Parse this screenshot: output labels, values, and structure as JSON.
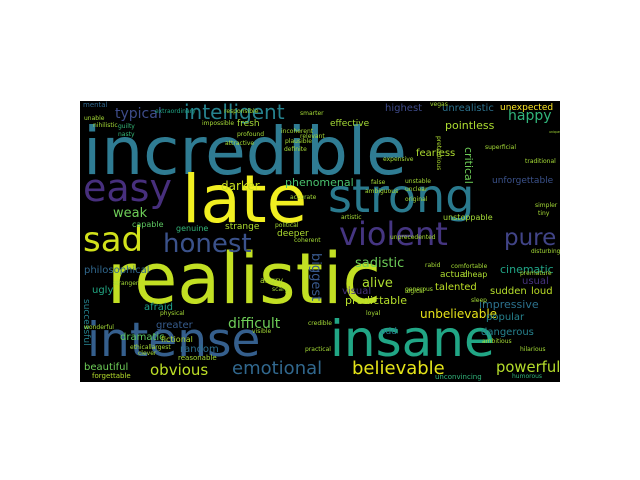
{
  "cloud": {
    "background": "#000000",
    "palette": [
      "#440154",
      "#482878",
      "#3e4989",
      "#31688e",
      "#26828e",
      "#1f9e89",
      "#35b779",
      "#6ece58",
      "#b5de2b",
      "#fde725"
    ],
    "words": [
      {
        "text": "incredible",
        "color": "#2f7c93"
      },
      {
        "text": "realistic",
        "color": "#c2df23"
      },
      {
        "text": "late",
        "color": "#f1ef21"
      },
      {
        "text": "strong",
        "color": "#2a7a8e"
      },
      {
        "text": "intense",
        "color": "#355f8d"
      },
      {
        "text": "insane",
        "color": "#21a685"
      },
      {
        "text": "easy",
        "color": "#472f7d"
      },
      {
        "text": "sad",
        "color": "#d2e21b"
      },
      {
        "text": "violent",
        "color": "#453581"
      },
      {
        "text": "honest",
        "color": "#3b528b"
      },
      {
        "text": "pure",
        "color": "#414487"
      },
      {
        "text": "intelligent",
        "color": "#26828e"
      },
      {
        "text": "typical",
        "color": "#3e4c8a"
      },
      {
        "text": "believable",
        "color": "#e5e419"
      },
      {
        "text": "emotional",
        "color": "#31688e"
      },
      {
        "text": "powerful",
        "color": "#b5de2b"
      },
      {
        "text": "happy",
        "color": "#31b57b"
      },
      {
        "text": "obvious",
        "color": "#bddf26"
      },
      {
        "text": "difficult",
        "color": "#6ece58"
      },
      {
        "text": "beautiful",
        "color": "#6ece58"
      },
      {
        "text": "darker",
        "color": "#cae11f"
      },
      {
        "text": "phenomenal",
        "color": "#4ac16d"
      },
      {
        "text": "biggest",
        "color": "#38588c"
      },
      {
        "text": "sadistic",
        "color": "#6ece58"
      },
      {
        "text": "cinematic",
        "color": "#20a486"
      },
      {
        "text": "alive",
        "color": "#addc30"
      },
      {
        "text": "predictable",
        "color": "#b5de2b"
      },
      {
        "text": "unbelievable",
        "color": "#e7e419"
      },
      {
        "text": "impressive",
        "color": "#2c728e"
      },
      {
        "text": "dramatic",
        "color": "#5ec962"
      },
      {
        "text": "weak",
        "color": "#6ece58"
      },
      {
        "text": "philosophical",
        "color": "#31688e"
      },
      {
        "text": "unrealistic",
        "color": "#2c728e"
      },
      {
        "text": "unexpected",
        "color": "#fde725"
      },
      {
        "text": "pointless",
        "color": "#addc30"
      },
      {
        "text": "critical",
        "color": "#6ece58"
      },
      {
        "text": "fearless",
        "color": "#addc30"
      },
      {
        "text": "unforgettable",
        "color": "#3b528b"
      },
      {
        "text": "highest",
        "color": "#3e4a89"
      },
      {
        "text": "random",
        "color": "#2d708e"
      },
      {
        "text": "greater",
        "color": "#365c8d"
      },
      {
        "text": "afraid",
        "color": "#1f9e89"
      },
      {
        "text": "visual",
        "color": "#46327e"
      },
      {
        "text": "usual",
        "color": "#46327e"
      },
      {
        "text": "popular",
        "color": "#26828e"
      },
      {
        "text": "dangerous",
        "color": "#26828e"
      },
      {
        "text": "talented",
        "color": "#bddf26"
      },
      {
        "text": "sudden",
        "color": "#b5de2b"
      },
      {
        "text": "loud",
        "color": "#bddf26"
      },
      {
        "text": "successful",
        "color": "#26828e"
      },
      {
        "text": "ugly",
        "color": "#22a884"
      },
      {
        "text": "fictional",
        "color": "#addc30"
      },
      {
        "text": "unconvincing",
        "color": "#31b57b"
      },
      {
        "text": "humorous",
        "color": "#31b57b"
      },
      {
        "text": "forgettable",
        "color": "#b5de2b"
      },
      {
        "text": "strange",
        "color": "#addc30"
      },
      {
        "text": "deeper",
        "color": "#addc30"
      },
      {
        "text": "angry",
        "color": "#addc30"
      },
      {
        "text": "capable",
        "color": "#5ec962"
      },
      {
        "text": "genuine",
        "color": "#35b779"
      },
      {
        "text": "reasonable",
        "color": "#a5db36"
      },
      {
        "text": "unstoppable",
        "color": "#a5db36"
      },
      {
        "text": "actual",
        "color": "#addc30"
      },
      {
        "text": "cheap",
        "color": "#addc30"
      },
      {
        "text": "odd",
        "color": "#26828e"
      },
      {
        "text": "fresh",
        "color": "#a5db36"
      },
      {
        "text": "effective",
        "color": "#a5db36"
      },
      {
        "text": "mental",
        "color": "#31688e"
      },
      {
        "text": "guilty",
        "color": "#35b779"
      },
      {
        "text": "nasty",
        "color": "#35b779"
      },
      {
        "text": "unable",
        "color": "#a5db36"
      },
      {
        "text": "nihilistic",
        "color": "#a5db36"
      },
      {
        "text": "extraordinary",
        "color": "#20a486"
      },
      {
        "text": "responsible",
        "color": "#a5db36"
      },
      {
        "text": "profound",
        "color": "#a5db36"
      },
      {
        "text": "incoherent",
        "color": "#a5db36"
      },
      {
        "text": "relevant",
        "color": "#a5db36"
      },
      {
        "text": "pretentious",
        "color": "#addc30"
      },
      {
        "text": "expensive",
        "color": "#a5db36"
      },
      {
        "text": "accurate",
        "color": "#a5db36"
      },
      {
        "text": "ambiguous",
        "color": "#a5db36"
      },
      {
        "text": "political",
        "color": "#a5db36"
      },
      {
        "text": "coherent",
        "color": "#a5db36"
      },
      {
        "text": "physical",
        "color": "#a5db36"
      },
      {
        "text": "stranger",
        "color": "#a5db36"
      },
      {
        "text": "logical",
        "color": "#a5db36"
      },
      {
        "text": "rabid",
        "color": "#a5db36"
      },
      {
        "text": "sleep",
        "color": "#a5db36"
      },
      {
        "text": "ambitious",
        "color": "#a5db36"
      },
      {
        "text": "practical",
        "color": "#a5db36"
      },
      {
        "text": "unprecedented",
        "color": "#a5db36"
      },
      {
        "text": "false",
        "color": "#a5db36"
      },
      {
        "text": "artistic",
        "color": "#a5db36"
      },
      {
        "text": "loyal",
        "color": "#a5db36"
      },
      {
        "text": "superficial",
        "color": "#a5db36"
      },
      {
        "text": "traditional",
        "color": "#a5db36"
      },
      {
        "text": "simpler",
        "color": "#a5db36"
      },
      {
        "text": "premature",
        "color": "#a5db36"
      },
      {
        "text": "unique",
        "color": "#a5db36"
      },
      {
        "text": "tiny",
        "color": "#a5db36"
      },
      {
        "text": "disturbing",
        "color": "#a5db36"
      },
      {
        "text": "comfortable",
        "color": "#a5db36"
      },
      {
        "text": "generous",
        "color": "#a5db36"
      },
      {
        "text": "smarter",
        "color": "#a5db36"
      },
      {
        "text": "attractive",
        "color": "#a5db36"
      },
      {
        "text": "definite",
        "color": "#a5db36"
      },
      {
        "text": "plausible",
        "color": "#a5db36"
      },
      {
        "text": "impossible",
        "color": "#a5db36"
      },
      {
        "text": "vegas",
        "color": "#a5db36"
      },
      {
        "text": "unstable",
        "color": "#a5db36"
      },
      {
        "text": "unclear",
        "color": "#a5db36"
      },
      {
        "text": "original",
        "color": "#a5db36"
      },
      {
        "text": "largest",
        "color": "#a5db36"
      },
      {
        "text": "visible",
        "color": "#a5db36"
      },
      {
        "text": "ethical",
        "color": "#a5db36"
      },
      {
        "text": "credible",
        "color": "#a5db36"
      },
      {
        "text": "scary",
        "color": "#a5db36"
      },
      {
        "text": "wonderful",
        "color": "#a5db36"
      },
      {
        "text": "clever",
        "color": "#a5db36"
      },
      {
        "text": "hilarious",
        "color": "#a5db36"
      }
    ]
  }
}
